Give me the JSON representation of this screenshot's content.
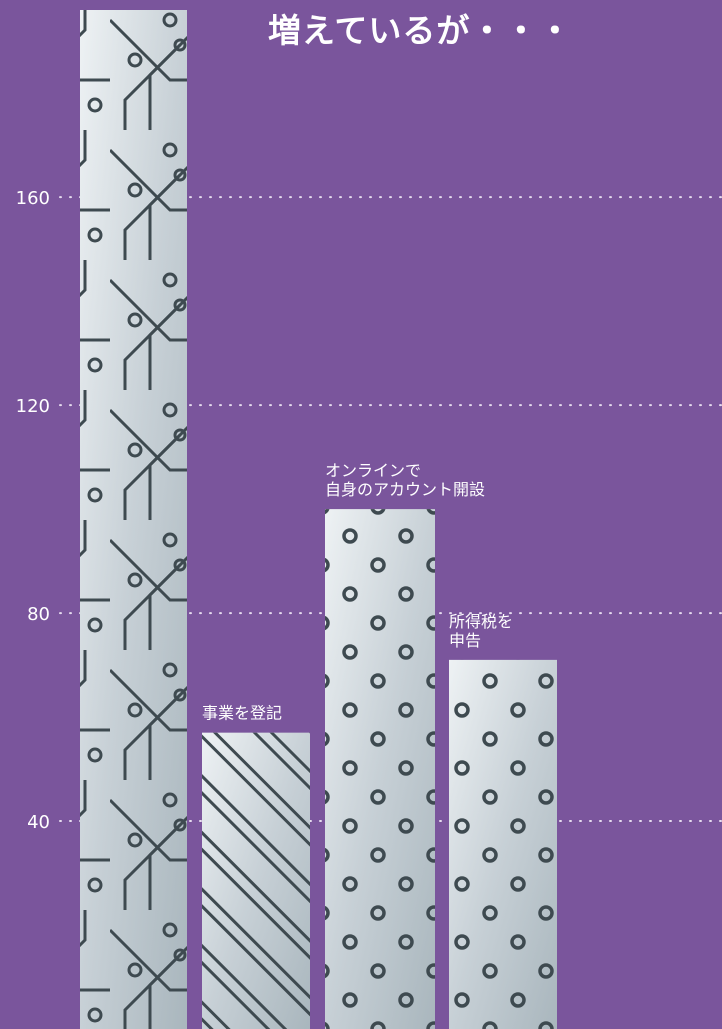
{
  "chart_data": {
    "type": "bar",
    "title": "増えているが・・・",
    "categories": [
      "",
      "事業を登記",
      "オンラインで\n自身のアカウント開設",
      "所得税を\n申告"
    ],
    "values": [
      196,
      57,
      100,
      71
    ],
    "yticks": [
      40,
      80,
      120,
      160
    ],
    "ylim": [
      0,
      196
    ],
    "grid": "dotted horizontal",
    "colors": {
      "background": "#7a559c",
      "bar": "#c9d2d8",
      "bar_pattern": "#3e4a50",
      "text": "#ffffff",
      "grid": "#e6dcef"
    }
  }
}
